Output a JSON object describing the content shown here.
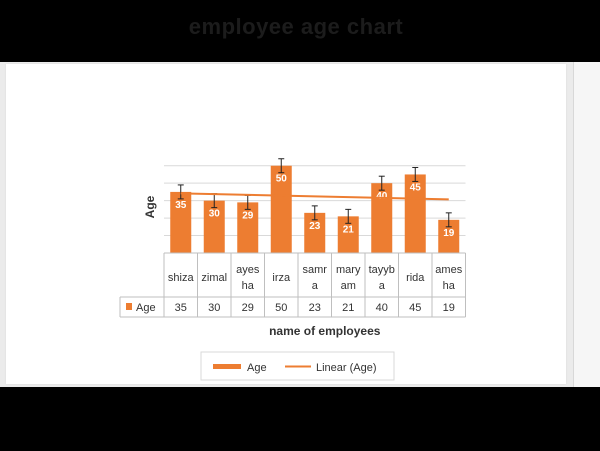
{
  "chart_data": {
    "type": "bar",
    "title": "employee age chart",
    "xlabel": "name of employees",
    "ylabel": "Age",
    "categories": [
      "shiza",
      "zimal",
      "ayesha",
      "irza",
      "samra",
      "maryam",
      "tayyba",
      "rida",
      "ameesha"
    ],
    "category_lines": [
      [
        "shiza"
      ],
      [
        "zimal"
      ],
      [
        "ayes",
        "ha"
      ],
      [
        "irza"
      ],
      [
        "samr",
        "a"
      ],
      [
        "mary",
        "am"
      ],
      [
        "tayyb",
        "a"
      ],
      [
        "rida"
      ],
      [
        "ames",
        "ha"
      ]
    ],
    "series": [
      {
        "name": "Age",
        "values": [
          35,
          30,
          29,
          50,
          23,
          21,
          40,
          45,
          19
        ],
        "color": "#ed7d31"
      }
    ],
    "error_bar": 4,
    "trendline": {
      "name": "Linear (Age)",
      "type": "linear",
      "color": "#ed7d31"
    },
    "ylim": [
      0,
      55
    ],
    "gridlines": true,
    "data_table": true,
    "legend": {
      "position": "bottom",
      "entries": [
        "Age",
        "Linear (Age)"
      ]
    }
  }
}
